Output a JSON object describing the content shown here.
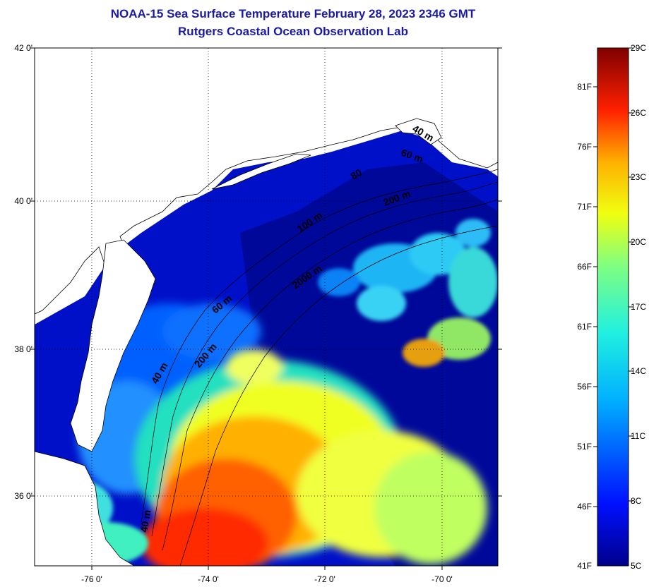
{
  "title_line1": "NOAA-15 Sea Surface Temperature February 28, 2023 2346 GMT",
  "title_line2": "Rutgers Coastal Ocean Observation Lab",
  "lat_ticks": [
    "42 0'",
    "40 0'",
    "38 0'",
    "36 0'"
  ],
  "lon_ticks": [
    "-76 0'",
    "-74 0'",
    "-72 0'",
    "-70 0'"
  ],
  "contour_labels": [
    "40 m",
    "60 m",
    "80",
    "100 m",
    "200 m",
    "2000 m",
    "40 m",
    "60 m",
    "200 m",
    "40 m"
  ],
  "colorbar": {
    "fahrenheit": [
      "81F",
      "76F",
      "71F",
      "66F",
      "61F",
      "56F",
      "51F",
      "46F",
      "41F"
    ],
    "celsius": [
      "29C",
      "26C",
      "23C",
      "20C",
      "17C",
      "14C",
      "11C",
      "8C",
      "5C"
    ]
  },
  "colors": {
    "title": "#1a1aa6",
    "land": "#ffffff",
    "cold": "#000090",
    "warm": "#800000"
  }
}
